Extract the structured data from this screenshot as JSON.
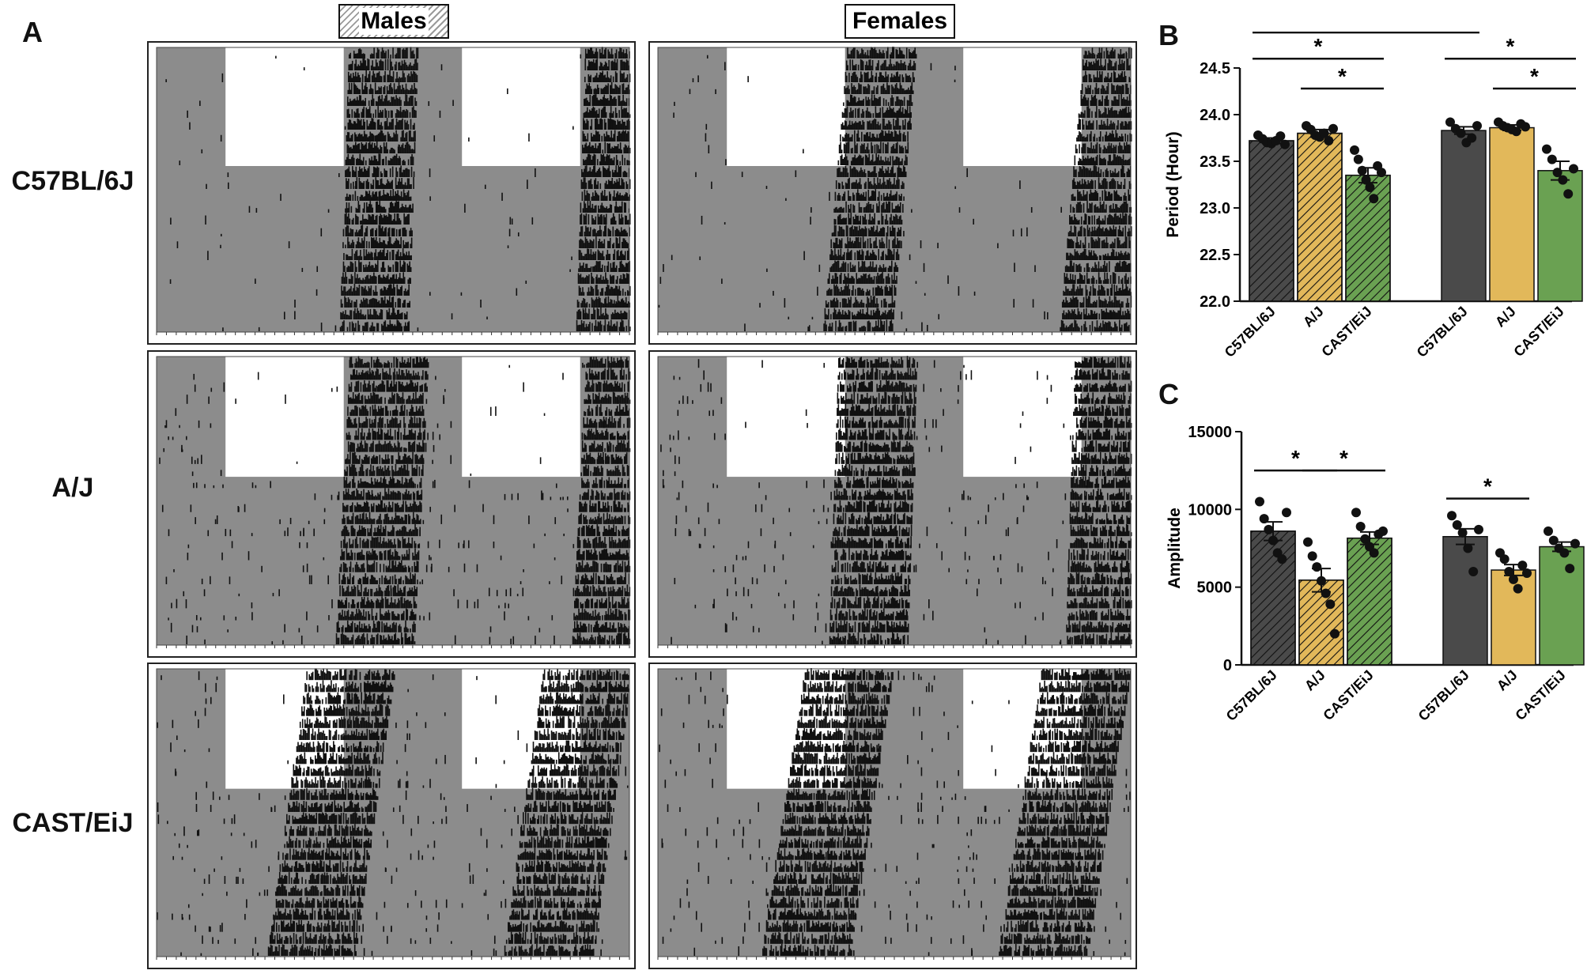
{
  "panel_letters": {
    "a": "A",
    "b": "B",
    "c": "C"
  },
  "actogram_panel": {
    "column_labels": {
      "males": "Males",
      "females": "Females"
    },
    "row_labels": [
      "C57BL/6J",
      "A/J",
      "CAST/EiJ"
    ],
    "axis_max_hours": 48,
    "days": 24,
    "light_phase_days": 10,
    "light_windows_hours": [
      [
        7,
        19
      ],
      [
        31,
        43
      ]
    ],
    "activity_onset_hours": {
      "C57BL/6J": {
        "males": [
          19.5,
          18.6
        ],
        "females": [
          19.2,
          16.8
        ]
      },
      "A/J": {
        "males": [
          19.6,
          18.2
        ],
        "females": [
          18.3,
          17.4
        ]
      },
      "CAST/EiJ": {
        "males": [
          15.2,
          11.3
        ],
        "females": [
          14.9,
          10.6
        ]
      }
    },
    "colors": {
      "dark_phase": "#8c8c8c",
      "light_phase": "#ffffff",
      "activity": "#111111"
    }
  },
  "chart_data": [
    {
      "panel": "B",
      "type": "bar",
      "ylabel": "Period (Hour)",
      "ylim": [
        22.0,
        24.5
      ],
      "yticks": [
        "22.0",
        "22.5",
        "23.0",
        "23.5",
        "24.0",
        "24.5"
      ],
      "categories": [
        "C57BL/6J",
        "A/J",
        "CAST/EiJ",
        "C57BL/6J",
        "A/J",
        "CAST/EiJ"
      ],
      "groups": [
        "Males",
        "Males",
        "Males",
        "Females",
        "Females",
        "Females"
      ],
      "hatched": [
        true,
        true,
        true,
        false,
        false,
        false
      ],
      "colors": [
        "#4a4a4a",
        "#e2b85a",
        "#6aa152",
        "#4a4a4a",
        "#e2b85a",
        "#6aa152"
      ],
      "values": [
        23.72,
        23.8,
        23.35,
        23.83,
        23.86,
        23.4
      ],
      "sem": [
        0.03,
        0.04,
        0.08,
        0.04,
        0.03,
        0.1
      ],
      "points": [
        [
          23.78,
          23.74,
          23.7,
          23.69,
          23.72,
          23.77,
          23.68
        ],
        [
          23.88,
          23.84,
          23.78,
          23.76,
          23.8,
          23.72,
          23.85
        ],
        [
          23.62,
          23.52,
          23.4,
          23.3,
          23.22,
          23.1,
          23.45,
          23.38
        ],
        [
          23.92,
          23.85,
          23.8,
          23.7,
          23.75,
          23.88
        ],
        [
          23.92,
          23.88,
          23.86,
          23.84,
          23.82,
          23.9,
          23.87
        ],
        [
          23.63,
          23.52,
          23.38,
          23.3,
          23.15,
          23.42
        ]
      ],
      "significance": [
        {
          "from": 0,
          "to": 3,
          "level": 24.88,
          "label": "*"
        },
        {
          "from": 0,
          "to": 2,
          "level": 24.6,
          "label": "*"
        },
        {
          "from": 1,
          "to": 2,
          "level": 24.28,
          "label": "*"
        },
        {
          "from": 3,
          "to": 5,
          "level": 24.6,
          "label": "*"
        },
        {
          "from": 4,
          "to": 5,
          "level": 24.28,
          "label": "*"
        }
      ]
    },
    {
      "panel": "C",
      "type": "bar",
      "ylabel": "Amplitude",
      "ylim": [
        0,
        15000
      ],
      "yticks": [
        "0",
        "5000",
        "10000",
        "15000"
      ],
      "categories": [
        "C57BL/6J",
        "A/J",
        "CAST/EiJ",
        "C57BL/6J",
        "A/J",
        "CAST/EiJ"
      ],
      "groups": [
        "Males",
        "Males",
        "Males",
        "Females",
        "Females",
        "Females"
      ],
      "hatched": [
        true,
        true,
        true,
        false,
        false,
        false
      ],
      "colors": [
        "#4a4a4a",
        "#e2b85a",
        "#6aa152",
        "#4a4a4a",
        "#e2b85a",
        "#6aa152"
      ],
      "values": [
        8600,
        5450,
        8150,
        8250,
        6100,
        7600
      ],
      "sem": [
        600,
        750,
        400,
        500,
        350,
        300
      ],
      "points": [
        [
          10500,
          9400,
          8700,
          8000,
          7200,
          6800,
          9800
        ],
        [
          7900,
          7000,
          6300,
          5400,
          4600,
          3900,
          2000
        ],
        [
          9800,
          8900,
          8100,
          7600,
          7200,
          8400,
          8600
        ],
        [
          9600,
          9000,
          8500,
          7500,
          6000,
          8700
        ],
        [
          7200,
          6800,
          6000,
          5500,
          4900,
          6400,
          5900
        ],
        [
          8600,
          8000,
          7500,
          7200,
          6200,
          7800
        ]
      ],
      "significance": [
        {
          "from": 0,
          "to": 1,
          "level": 12500,
          "label": "*"
        },
        {
          "from": 1,
          "to": 2,
          "level": 12500,
          "label": "*"
        },
        {
          "from": 3,
          "to": 4,
          "level": 10700,
          "label": "*"
        }
      ]
    }
  ]
}
